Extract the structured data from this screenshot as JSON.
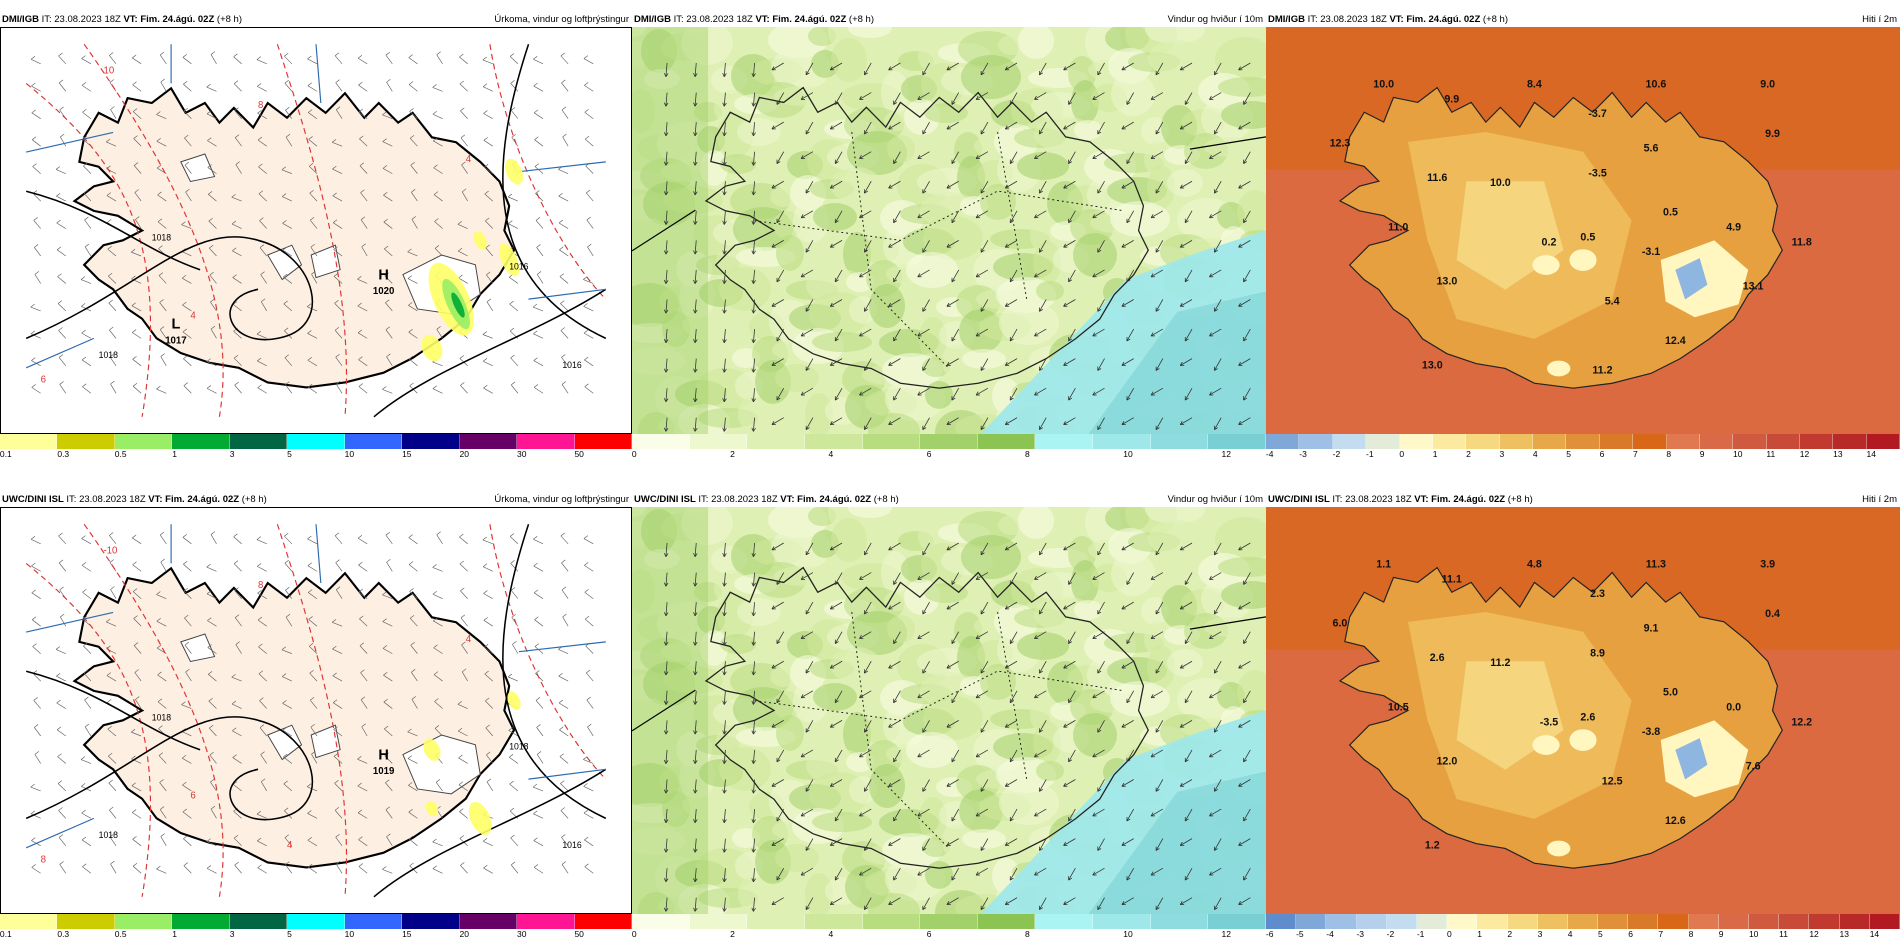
{
  "rows": [
    {
      "panels": [
        {
          "id": "r1p1",
          "model": "DMI/IGB",
          "it_label": "IT:",
          "it": "23.08.2023 18Z",
          "vt_label": "VT:",
          "vt": "Fim. 24.ágú. 02Z",
          "lead": "(+8 h)",
          "title": "Úrkoma, vindur og loftþrýstingur",
          "type": "precip",
          "colorbar": {
            "colors": [
              "#ffff99",
              "#cccc00",
              "#99ee66",
              "#00aa33",
              "#006644",
              "#00ffff",
              "#3366ff",
              "#000088",
              "#660066",
              "#ff1493",
              "#ff0000"
            ],
            "ticks": [
              "0.1",
              "0.3",
              "0.5",
              "1",
              "3",
              "5",
              "10",
              "15",
              "20",
              "30",
              "50"
            ]
          },
          "pressure_labels": [
            {
              "sym": "H",
              "value": "1020"
            },
            {
              "sym": "L",
              "value": "1017"
            }
          ],
          "isobar_labels": [
            "1018",
            "1016",
            "1018",
            "1016"
          ],
          "temp_contour_labels": [
            "10",
            "8",
            "6",
            "4",
            "4"
          ]
        },
        {
          "id": "r1p2",
          "model": "DMI/IGB",
          "it_label": "IT:",
          "it": "23.08.2023 18Z",
          "vt_label": "VT:",
          "vt": "Fim. 24.ágú. 02Z",
          "lead": "(+8 h)",
          "title": "Vindur og hviður í 10m",
          "type": "wind",
          "colorbar": {
            "colors": [
              "#fafde8",
              "#eef8cf",
              "#dff0b4",
              "#cde89a",
              "#b8dc80",
              "#a2d06a",
              "#8cc454",
              "#aaf4f4",
              "#9fe8ea",
              "#8edbe0",
              "#7acfd4"
            ],
            "ticks": [
              "0",
              "2",
              "4",
              "6",
              "8",
              "10",
              "12"
            ]
          }
        },
        {
          "id": "r1p3",
          "model": "DMI/IGB",
          "it_label": "IT:",
          "it": "23.08.2023 18Z",
          "vt_label": "VT:",
          "vt": "Fim. 24.ágú. 02Z",
          "lead": "(+8 h)",
          "title": "Hiti í 2m",
          "type": "temp",
          "colorbar": {
            "colors": [
              "#7fa8d8",
              "#9fc0e6",
              "#c4dcf0",
              "#e2ecd8",
              "#fff8c8",
              "#fbeaa0",
              "#f5d880",
              "#eec060",
              "#e6a848",
              "#e09038",
              "#d97a28",
              "#d86818",
              "#e07850",
              "#d86a48",
              "#d05a40",
              "#c84a38",
              "#c03a30",
              "#b82a28",
              "#b01a20"
            ],
            "ticks": [
              "-4",
              "-3",
              "-2",
              "-1",
              "0",
              "1",
              "2",
              "3",
              "4",
              "5",
              "6",
              "7",
              "8",
              "9",
              "10",
              "11",
              "12",
              "13",
              "14"
            ]
          },
          "values": [
            {
              "v": "10.0"
            },
            {
              "v": "9.9"
            },
            {
              "v": "8.4"
            },
            {
              "v": "10.6"
            },
            {
              "v": "9.0"
            },
            {
              "v": "12.3"
            },
            {
              "v": "-3.7"
            },
            {
              "v": "9.9"
            },
            {
              "v": "5.6"
            },
            {
              "v": "11.6"
            },
            {
              "v": "-3.5"
            },
            {
              "v": "10.0"
            },
            {
              "v": "0.5"
            },
            {
              "v": "11.0"
            },
            {
              "v": "4.9"
            },
            {
              "v": "0.2"
            },
            {
              "v": "0.5"
            },
            {
              "v": "-3.1"
            },
            {
              "v": "11.8"
            },
            {
              "v": "13.0"
            },
            {
              "v": "5.4"
            },
            {
              "v": "13.1"
            },
            {
              "v": "12.4"
            },
            {
              "v": "13.0"
            },
            {
              "v": "11.2"
            }
          ]
        }
      ]
    },
    {
      "panels": [
        {
          "id": "r2p1",
          "model": "UWC/DINI ISL",
          "it_label": "IT:",
          "it": "23.08.2023 18Z",
          "vt_label": "VT:",
          "vt": "Fim. 24.ágú. 02Z",
          "lead": "(+8 h)",
          "title": "Úrkoma, vindur og loftþrýstingur",
          "type": "precip",
          "colorbar": {
            "colors": [
              "#ffff99",
              "#cccc00",
              "#99ee66",
              "#00aa33",
              "#006644",
              "#00ffff",
              "#3366ff",
              "#000088",
              "#660066",
              "#ff1493",
              "#ff0000"
            ],
            "ticks": [
              "0.1",
              "0.3",
              "0.5",
              "1",
              "3",
              "5",
              "10",
              "15",
              "20",
              "30",
              "50"
            ]
          },
          "pressure_labels": [
            {
              "sym": "H",
              "value": "1019"
            }
          ],
          "isobar_labels": [
            "1018",
            "1018",
            "1018",
            "1016"
          ],
          "temp_contour_labels": [
            "-10",
            "8",
            "8",
            "6",
            "4",
            "4"
          ]
        },
        {
          "id": "r2p2",
          "model": "UWC/DINI ISL",
          "it_label": "IT:",
          "it": "23.08.2023 18Z",
          "vt_label": "VT:",
          "vt": "Fim. 24.ágú. 02Z",
          "lead": "(+8 h)",
          "title": "Vindur og hviður í 10m",
          "type": "wind",
          "colorbar": {
            "colors": [
              "#fafde8",
              "#eef8cf",
              "#dff0b4",
              "#cde89a",
              "#b8dc80",
              "#a2d06a",
              "#8cc454",
              "#aaf4f4",
              "#9fe8ea",
              "#8edbe0",
              "#7acfd4"
            ],
            "ticks": [
              "0",
              "2",
              "4",
              "6",
              "8",
              "10",
              "12"
            ]
          }
        },
        {
          "id": "r2p3",
          "model": "UWC/DINI ISL",
          "it_label": "IT:",
          "it": "23.08.2023 18Z",
          "vt_label": "VT:",
          "vt": "Fim. 24.ágú. 02Z",
          "lead": "(+8 h)",
          "title": "Hiti í 2m",
          "type": "temp",
          "colorbar": {
            "colors": [
              "#5f8ccc",
              "#7fa8d8",
              "#9fc0e6",
              "#b4d0ec",
              "#c4dcf0",
              "#e2ecd8",
              "#fff8c8",
              "#fbeaa0",
              "#f5d880",
              "#eec060",
              "#e6a848",
              "#e09038",
              "#d97a28",
              "#d86818",
              "#e07850",
              "#d86a48",
              "#d05a40",
              "#c84a38",
              "#c03a30",
              "#b82a28",
              "#b01a20"
            ],
            "ticks": [
              "-6",
              "-5",
              "-4",
              "-3",
              "-2",
              "-1",
              "0",
              "1",
              "2",
              "3",
              "4",
              "5",
              "6",
              "7",
              "8",
              "9",
              "10",
              "11",
              "12",
              "13",
              "14"
            ]
          },
          "values": [
            {
              "v": "1.1"
            },
            {
              "v": "11.1"
            },
            {
              "v": "4.8"
            },
            {
              "v": "11.3"
            },
            {
              "v": "3.9"
            },
            {
              "v": "6.0"
            },
            {
              "v": "2.3"
            },
            {
              "v": "0.4"
            },
            {
              "v": "9.1"
            },
            {
              "v": "2.6"
            },
            {
              "v": "8.9"
            },
            {
              "v": "11.2"
            },
            {
              "v": "5.0"
            },
            {
              "v": "10.5"
            },
            {
              "v": "0.0"
            },
            {
              "v": "-3.5"
            },
            {
              "v": "2.6"
            },
            {
              "v": "-3.8"
            },
            {
              "v": "12.2"
            },
            {
              "v": "12.0"
            },
            {
              "v": "12.5"
            },
            {
              "v": "7.6"
            },
            {
              "v": "12.6"
            },
            {
              "v": "1.2"
            }
          ]
        }
      ]
    }
  ]
}
